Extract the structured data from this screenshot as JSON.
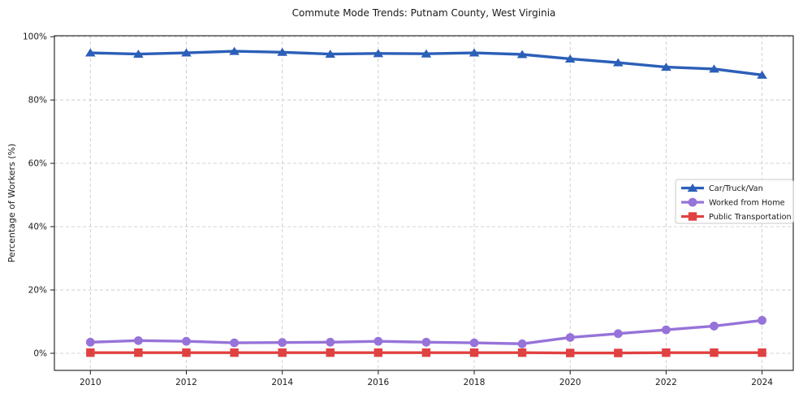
{
  "chart_data": {
    "type": "line",
    "title": "Commute Mode Trends: Putnam County, West Virginia",
    "ylabel": "Percentage of Workers (%)",
    "xlabel": "",
    "x": [
      2010,
      2011,
      2012,
      2013,
      2014,
      2015,
      2016,
      2017,
      2018,
      2019,
      2020,
      2021,
      2022,
      2023,
      2024
    ],
    "series": [
      {
        "name": "Car/Truck/Van",
        "color": "#2b5fb8",
        "marker": "triangle",
        "values": [
          94.9,
          94.5,
          94.9,
          95.4,
          95.1,
          94.5,
          94.7,
          94.6,
          94.9,
          94.4,
          93.0,
          91.8,
          90.4,
          89.8,
          87.9
        ]
      },
      {
        "name": "Worked from Home",
        "color": "#9673d9",
        "marker": "circle",
        "values": [
          3.5,
          4.0,
          3.8,
          3.3,
          3.4,
          3.5,
          3.8,
          3.5,
          3.3,
          3.0,
          5.0,
          6.2,
          7.4,
          8.6,
          10.4
        ]
      },
      {
        "name": "Public Transportation",
        "color": "#e04141",
        "marker": "square",
        "values": [
          0.2,
          0.2,
          0.2,
          0.2,
          0.2,
          0.2,
          0.2,
          0.2,
          0.2,
          0.2,
          0.1,
          0.1,
          0.2,
          0.2,
          0.2
        ]
      }
    ],
    "x_ticks": [
      2010,
      2012,
      2014,
      2016,
      2018,
      2020,
      2022,
      2024
    ],
    "x_tick_labels": [
      "2010",
      "2012",
      "2014",
      "2016",
      "2018",
      "2020",
      "2022",
      "2024"
    ],
    "y_ticks": [
      0,
      20,
      40,
      60,
      80,
      100
    ],
    "y_tick_labels": [
      "0%",
      "20%",
      "40%",
      "60%",
      "80%",
      "100%"
    ],
    "xlim": [
      2009.25,
      2024.65
    ],
    "ylim": [
      -5.4,
      100.3
    ],
    "grid": true,
    "legend": {
      "position": "center right",
      "background": "#ffffff",
      "border_color": "#c9c9c9"
    },
    "axis_color": "#1a1a1a",
    "grid_color": "#cccccc"
  }
}
